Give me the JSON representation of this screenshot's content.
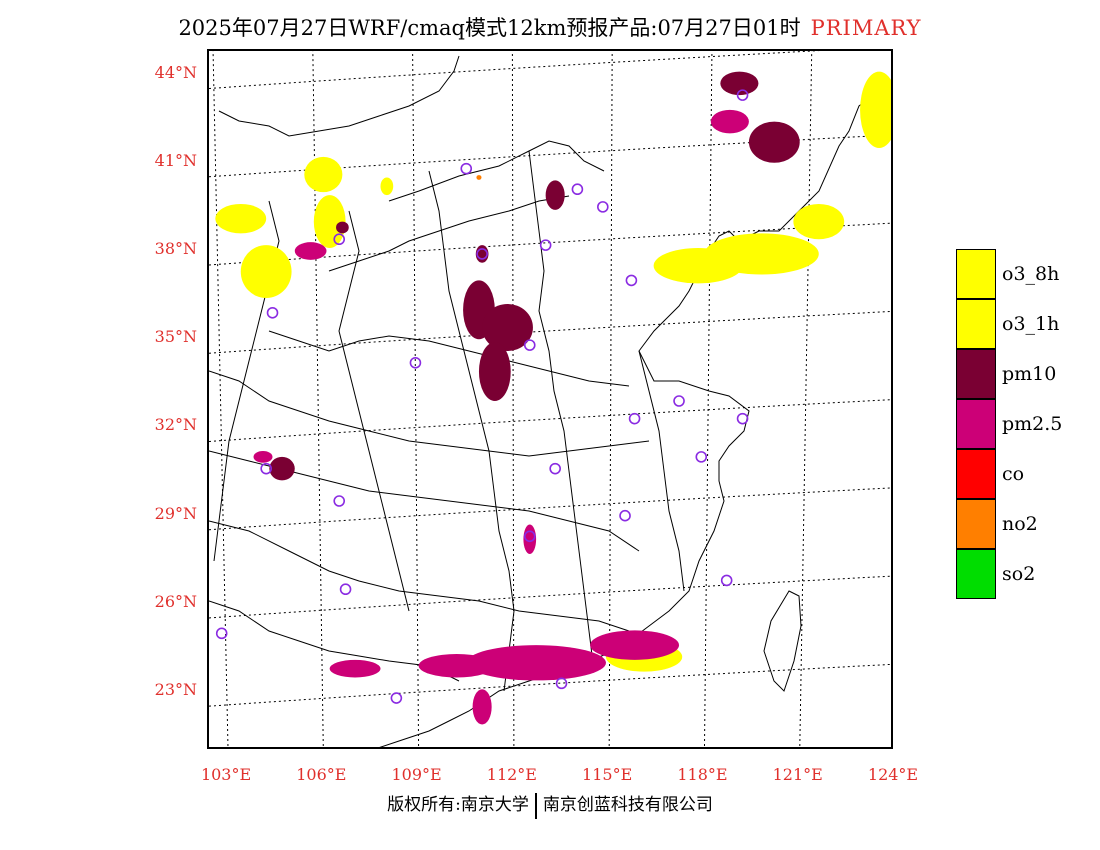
{
  "title": {
    "text": "2025年07月27日WRF/cmaq模式12km预报产品:07月27日01时",
    "tag": "PRIMARY",
    "tag_color": "#e0302c"
  },
  "map": {
    "lat_labels": [
      "44°N",
      "41°N",
      "38°N",
      "35°N",
      "32°N",
      "29°N",
      "26°N",
      "23°N"
    ],
    "lon_labels": [
      "103°E",
      "106°E",
      "109°E",
      "112°E",
      "115°E",
      "118°E",
      "121°E",
      "124°E"
    ],
    "label_color": "#e0302c",
    "station_marker_color": "#8a2be2",
    "stations": [
      {
        "lon": 119.2,
        "lat": 43.3
      },
      {
        "lon": 110.5,
        "lat": 40.8
      },
      {
        "lon": 114.0,
        "lat": 40.1
      },
      {
        "lon": 114.8,
        "lat": 39.5
      },
      {
        "lon": 106.5,
        "lat": 38.4
      },
      {
        "lon": 111.0,
        "lat": 37.9
      },
      {
        "lon": 113.0,
        "lat": 38.2
      },
      {
        "lon": 115.7,
        "lat": 37.0
      },
      {
        "lon": 104.4,
        "lat": 35.9
      },
      {
        "lon": 112.5,
        "lat": 34.8
      },
      {
        "lon": 108.9,
        "lat": 34.2
      },
      {
        "lon": 117.2,
        "lat": 32.9
      },
      {
        "lon": 115.8,
        "lat": 32.3
      },
      {
        "lon": 119.2,
        "lat": 32.3
      },
      {
        "lon": 104.2,
        "lat": 30.6
      },
      {
        "lon": 113.3,
        "lat": 30.6
      },
      {
        "lon": 117.9,
        "lat": 31.0
      },
      {
        "lon": 106.5,
        "lat": 29.5
      },
      {
        "lon": 115.5,
        "lat": 29.0
      },
      {
        "lon": 112.5,
        "lat": 28.3
      },
      {
        "lon": 106.7,
        "lat": 26.5
      },
      {
        "lon": 118.7,
        "lat": 26.8
      },
      {
        "lon": 102.8,
        "lat": 25.0
      },
      {
        "lon": 108.3,
        "lat": 22.8
      },
      {
        "lon": 113.5,
        "lat": 23.3
      }
    ],
    "fields": {
      "o3_8h": [
        {
          "lon": 104.2,
          "lat": 37.3,
          "rx": 0.8,
          "ry": 0.9
        },
        {
          "lon": 103.4,
          "lat": 39.1,
          "rx": 0.8,
          "ry": 0.5
        },
        {
          "lon": 106.2,
          "lat": 39.0,
          "rx": 0.5,
          "ry": 0.9
        },
        {
          "lon": 106.0,
          "lat": 40.6,
          "rx": 0.6,
          "ry": 0.6
        },
        {
          "lon": 108.0,
          "lat": 40.2,
          "rx": 0.2,
          "ry": 0.3
        },
        {
          "lon": 117.8,
          "lat": 37.5,
          "rx": 1.4,
          "ry": 0.6
        },
        {
          "lon": 119.8,
          "lat": 37.9,
          "rx": 1.8,
          "ry": 0.7
        },
        {
          "lon": 121.6,
          "lat": 39.0,
          "rx": 0.8,
          "ry": 0.6
        },
        {
          "lon": 123.5,
          "lat": 42.8,
          "rx": 0.6,
          "ry": 1.3
        },
        {
          "lon": 116.1,
          "lat": 24.2,
          "rx": 1.2,
          "ry": 0.5
        }
      ],
      "pm10": [
        {
          "lon": 119.1,
          "lat": 43.7,
          "rx": 0.6,
          "ry": 0.4
        },
        {
          "lon": 120.2,
          "lat": 41.7,
          "rx": 0.8,
          "ry": 0.7
        },
        {
          "lon": 110.9,
          "lat": 36.0,
          "rx": 0.5,
          "ry": 1.0
        },
        {
          "lon": 111.8,
          "lat": 35.4,
          "rx": 0.8,
          "ry": 0.8
        },
        {
          "lon": 111.4,
          "lat": 33.9,
          "rx": 0.5,
          "ry": 1.0
        },
        {
          "lon": 111.0,
          "lat": 37.9,
          "rx": 0.2,
          "ry": 0.3
        },
        {
          "lon": 113.3,
          "lat": 39.9,
          "rx": 0.3,
          "ry": 0.5
        },
        {
          "lon": 106.6,
          "lat": 38.8,
          "rx": 0.2,
          "ry": 0.2
        },
        {
          "lon": 104.7,
          "lat": 30.6,
          "rx": 0.4,
          "ry": 0.4
        }
      ],
      "pm25": [
        {
          "lon": 112.7,
          "lat": 24.0,
          "rx": 2.2,
          "ry": 0.6
        },
        {
          "lon": 115.8,
          "lat": 24.6,
          "rx": 1.4,
          "ry": 0.5
        },
        {
          "lon": 110.2,
          "lat": 23.9,
          "rx": 1.2,
          "ry": 0.4
        },
        {
          "lon": 107.0,
          "lat": 23.8,
          "rx": 0.8,
          "ry": 0.3
        },
        {
          "lon": 111.0,
          "lat": 22.5,
          "rx": 0.3,
          "ry": 0.6
        },
        {
          "lon": 118.8,
          "lat": 42.4,
          "rx": 0.6,
          "ry": 0.4
        },
        {
          "lon": 105.6,
          "lat": 38.0,
          "rx": 0.5,
          "ry": 0.3
        },
        {
          "lon": 112.5,
          "lat": 28.2,
          "rx": 0.2,
          "ry": 0.5
        },
        {
          "lon": 104.1,
          "lat": 31.0,
          "rx": 0.3,
          "ry": 0.2
        }
      ],
      "no2": [
        {
          "lon": 110.9,
          "lat": 40.5,
          "rx": 0.08,
          "ry": 0.08
        }
      ]
    }
  },
  "legend": [
    {
      "label": "o3_8h",
      "color": "#ffff00"
    },
    {
      "label": "o3_1h",
      "color": "#ffff00"
    },
    {
      "label": "pm10",
      "color": "#7a0033"
    },
    {
      "label": "pm2.5",
      "color": "#cc0077"
    },
    {
      "label": "co",
      "color": "#ff0000"
    },
    {
      "label": "no2",
      "color": "#ff7f00"
    },
    {
      "label": "so2",
      "color": "#00dd00"
    }
  ],
  "footer": {
    "left": "版权所有:南京大学",
    "right": "南京创蓝科技有限公司"
  }
}
